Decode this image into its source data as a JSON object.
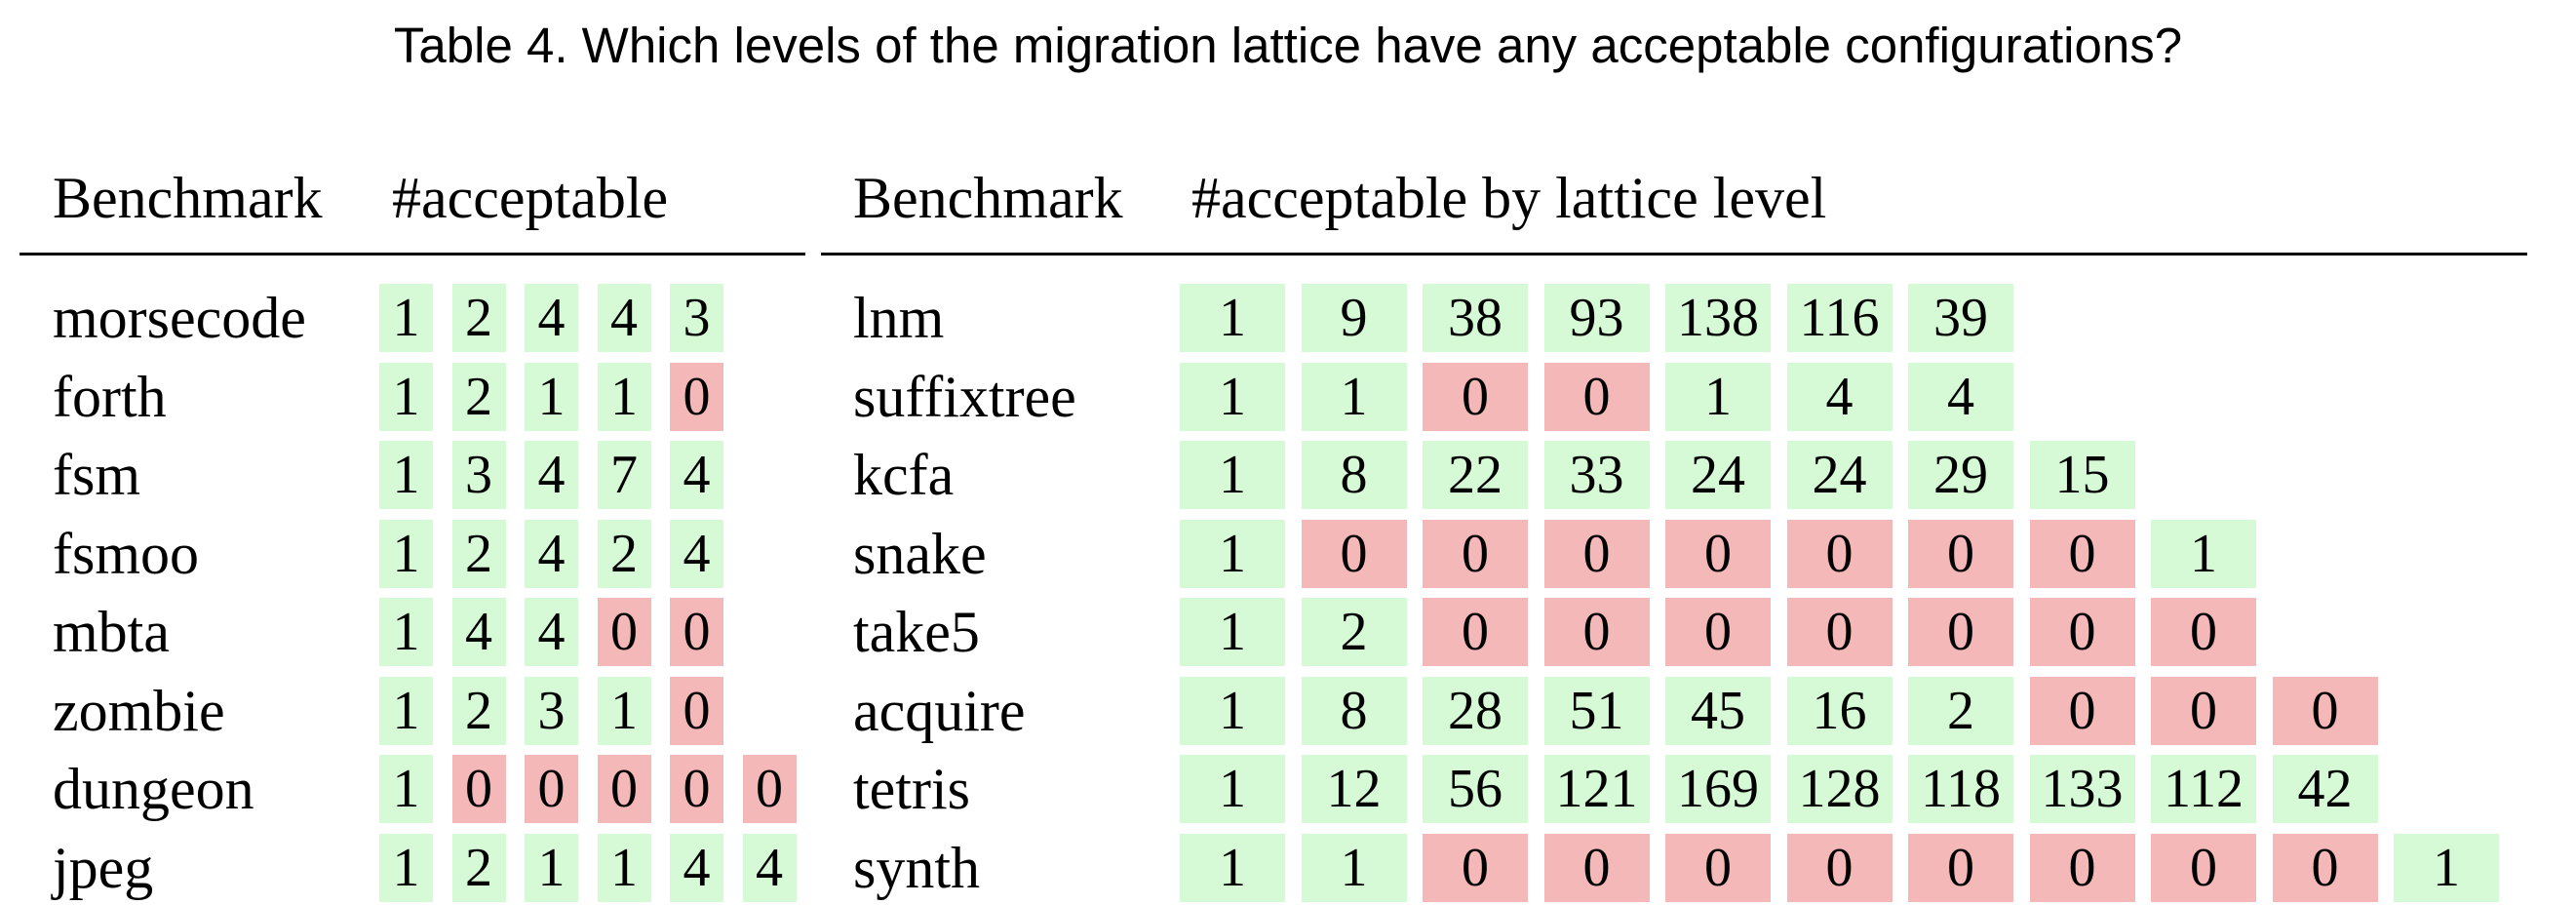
{
  "caption": "Table 4.  Which levels of the migration lattice have any acceptable configurations?",
  "left_table": {
    "header_benchmark": "Benchmark",
    "header_count": "#acceptable",
    "rows": [
      {
        "name": "morsecode",
        "values": [
          "1",
          "2",
          "4",
          "4",
          "3"
        ]
      },
      {
        "name": "forth",
        "values": [
          "1",
          "2",
          "1",
          "1",
          "0"
        ]
      },
      {
        "name": "fsm",
        "values": [
          "1",
          "3",
          "4",
          "7",
          "4"
        ]
      },
      {
        "name": "fsmoo",
        "values": [
          "1",
          "2",
          "4",
          "2",
          "4"
        ]
      },
      {
        "name": "mbta",
        "values": [
          "1",
          "4",
          "4",
          "0",
          "0"
        ]
      },
      {
        "name": "zombie",
        "values": [
          "1",
          "2",
          "3",
          "1",
          "0"
        ]
      },
      {
        "name": "dungeon",
        "values": [
          "1",
          "0",
          "0",
          "0",
          "0",
          "0"
        ]
      },
      {
        "name": "jpeg",
        "values": [
          "1",
          "2",
          "1",
          "1",
          "4",
          "4"
        ]
      }
    ]
  },
  "right_table": {
    "header_benchmark": "Benchmark",
    "header_count": "#acceptable by lattice level",
    "rows": [
      {
        "name": "lnm",
        "values": [
          "1",
          "9",
          "38",
          "93",
          "138",
          "116",
          "39"
        ]
      },
      {
        "name": "suffixtree",
        "values": [
          "1",
          "1",
          "0",
          "0",
          "1",
          "4",
          "4"
        ]
      },
      {
        "name": "kcfa",
        "values": [
          "1",
          "8",
          "22",
          "33",
          "24",
          "24",
          "29",
          "15"
        ]
      },
      {
        "name": "snake",
        "values": [
          "1",
          "0",
          "0",
          "0",
          "0",
          "0",
          "0",
          "0",
          "1"
        ]
      },
      {
        "name": "take5",
        "values": [
          "1",
          "2",
          "0",
          "0",
          "0",
          "0",
          "0",
          "0",
          "0"
        ]
      },
      {
        "name": "acquire",
        "values": [
          "1",
          "8",
          "28",
          "51",
          "45",
          "16",
          "2",
          "0",
          "0",
          "0"
        ]
      },
      {
        "name": "tetris",
        "values": [
          "1",
          "12",
          "56",
          "121",
          "169",
          "128",
          "118",
          "133",
          "112",
          "42"
        ]
      },
      {
        "name": "synth",
        "values": [
          "1",
          "1",
          "0",
          "0",
          "0",
          "0",
          "0",
          "0",
          "0",
          "0",
          "1"
        ]
      }
    ]
  },
  "colors": {
    "acceptable_nonzero": "#d6fad6",
    "acceptable_zero": "#f4b8b8"
  }
}
